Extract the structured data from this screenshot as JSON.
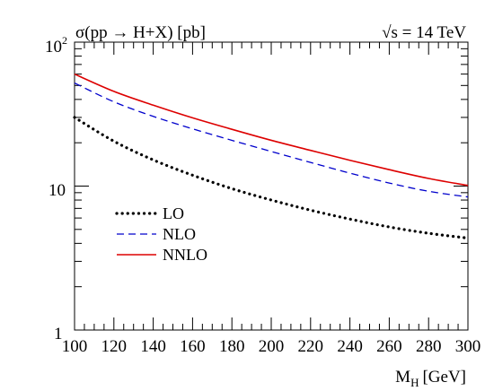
{
  "chart_data": {
    "type": "line",
    "title": "σ(pp → H+X) [pb]",
    "annotation": "√s = 14 TeV",
    "xlabel": "M",
    "xlabel_subscript": "H",
    "xlabel_unit": "[GeV]",
    "ylabel": "",
    "y_scale": "log",
    "xlim": [
      100,
      300
    ],
    "ylim": [
      1,
      100
    ],
    "x_ticks": [
      100,
      120,
      140,
      160,
      180,
      200,
      220,
      240,
      260,
      280,
      300
    ],
    "y_tick_labels": {
      "base": "10",
      "exp": "2",
      "ten": "10",
      "one": "1"
    },
    "grid": false,
    "legend_position": "left",
    "x": [
      100,
      120,
      140,
      160,
      180,
      200,
      220,
      240,
      260,
      280,
      300
    ],
    "series": [
      {
        "name": "LO",
        "color": "#000000",
        "style": "dotted",
        "values": [
          30.0,
          20.5,
          15.2,
          11.9,
          9.6,
          8.0,
          6.8,
          5.9,
          5.2,
          4.7,
          4.35
        ]
      },
      {
        "name": "NLO",
        "color": "#0000cc",
        "style": "dashed",
        "values": [
          52.0,
          38.5,
          30.5,
          25.0,
          20.8,
          17.4,
          14.6,
          12.3,
          10.5,
          9.2,
          8.4
        ]
      },
      {
        "name": "NNLO",
        "color": "#dd0000",
        "style": "solid",
        "values": [
          60.0,
          45.5,
          36.5,
          29.8,
          24.8,
          20.8,
          17.7,
          15.1,
          13.0,
          11.3,
          10.1
        ]
      }
    ]
  }
}
